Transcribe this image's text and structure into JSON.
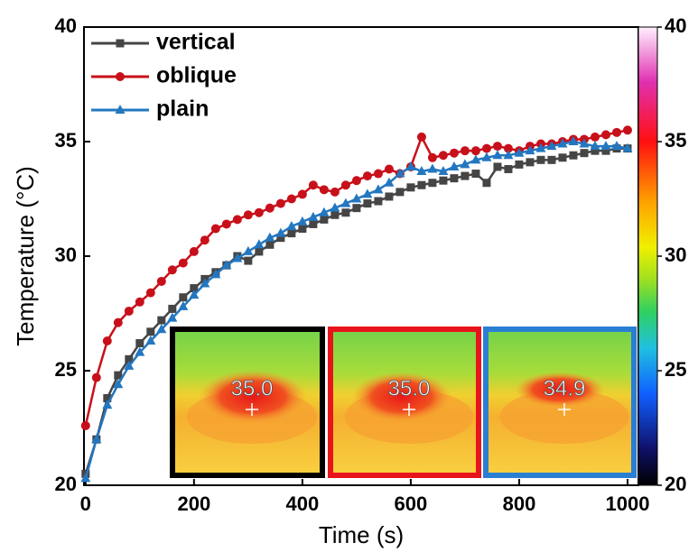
{
  "chart_data": {
    "type": "line",
    "xlabel": "Time (s)",
    "ylabel": "Temperature (°C)",
    "x": [
      0,
      20,
      40,
      60,
      80,
      100,
      120,
      140,
      160,
      180,
      200,
      220,
      240,
      260,
      280,
      300,
      320,
      340,
      360,
      380,
      400,
      420,
      440,
      460,
      480,
      500,
      520,
      540,
      560,
      580,
      600,
      620,
      640,
      660,
      680,
      700,
      720,
      740,
      760,
      780,
      800,
      820,
      840,
      860,
      880,
      900,
      920,
      940,
      960,
      980,
      1000
    ],
    "series": [
      {
        "name": "vertical",
        "color": "#454545",
        "marker": "square",
        "values": [
          20.5,
          22.0,
          23.8,
          24.8,
          25.5,
          26.2,
          26.7,
          27.2,
          27.7,
          28.2,
          28.6,
          29.0,
          29.3,
          29.6,
          30.0,
          29.8,
          30.2,
          30.5,
          30.8,
          31.0,
          31.2,
          31.4,
          31.6,
          31.8,
          31.9,
          32.1,
          32.3,
          32.4,
          32.6,
          32.8,
          33.0,
          33.1,
          33.2,
          33.3,
          33.4,
          33.5,
          33.6,
          33.2,
          33.9,
          33.8,
          34.0,
          34.1,
          34.2,
          34.2,
          34.3,
          34.4,
          34.5,
          34.6,
          34.6,
          34.7,
          34.7
        ]
      },
      {
        "name": "oblique",
        "color": "#c8101a",
        "marker": "circle",
        "values": [
          22.6,
          24.7,
          26.3,
          27.1,
          27.6,
          28.0,
          28.4,
          28.9,
          29.4,
          29.7,
          30.2,
          30.7,
          31.2,
          31.4,
          31.6,
          31.8,
          31.9,
          32.1,
          32.3,
          32.5,
          32.7,
          33.1,
          32.9,
          32.8,
          33.1,
          33.3,
          33.5,
          33.6,
          33.8,
          33.6,
          33.9,
          35.2,
          34.3,
          34.4,
          34.5,
          34.6,
          34.6,
          34.7,
          34.8,
          34.7,
          34.6,
          34.8,
          34.9,
          34.9,
          35.0,
          35.1,
          35.1,
          35.2,
          35.3,
          35.4,
          35.5
        ]
      },
      {
        "name": "plain",
        "color": "#2377c0",
        "marker": "triangle",
        "values": [
          20.3,
          22.0,
          23.5,
          24.4,
          25.2,
          25.8,
          26.3,
          26.8,
          27.3,
          27.8,
          28.3,
          28.8,
          29.2,
          29.6,
          29.9,
          30.2,
          30.5,
          30.8,
          31.0,
          31.3,
          31.5,
          31.7,
          31.9,
          32.1,
          32.3,
          32.5,
          32.7,
          32.9,
          33.2,
          33.6,
          33.9,
          33.7,
          33.8,
          33.7,
          33.9,
          34.0,
          34.2,
          34.3,
          34.4,
          34.4,
          34.5,
          34.6,
          34.7,
          34.8,
          34.9,
          35.0,
          34.9,
          34.8,
          34.8,
          34.8,
          34.7
        ]
      }
    ],
    "xlim": [
      -3,
      1020
    ],
    "xticks": [
      0,
      200,
      400,
      600,
      800,
      1000
    ],
    "ylim": [
      20,
      40
    ],
    "yticks": [
      20,
      25,
      30,
      35,
      40
    ],
    "y2lim": [
      20,
      40
    ],
    "y2ticks": [
      20,
      25,
      30,
      35,
      40
    ],
    "legend": "upper left",
    "insets": [
      {
        "label": "35.0",
        "border": "#000000"
      },
      {
        "label": "35.0",
        "border": "#e8141c"
      },
      {
        "label": "34.9",
        "border": "#2a7fd4"
      }
    ]
  }
}
